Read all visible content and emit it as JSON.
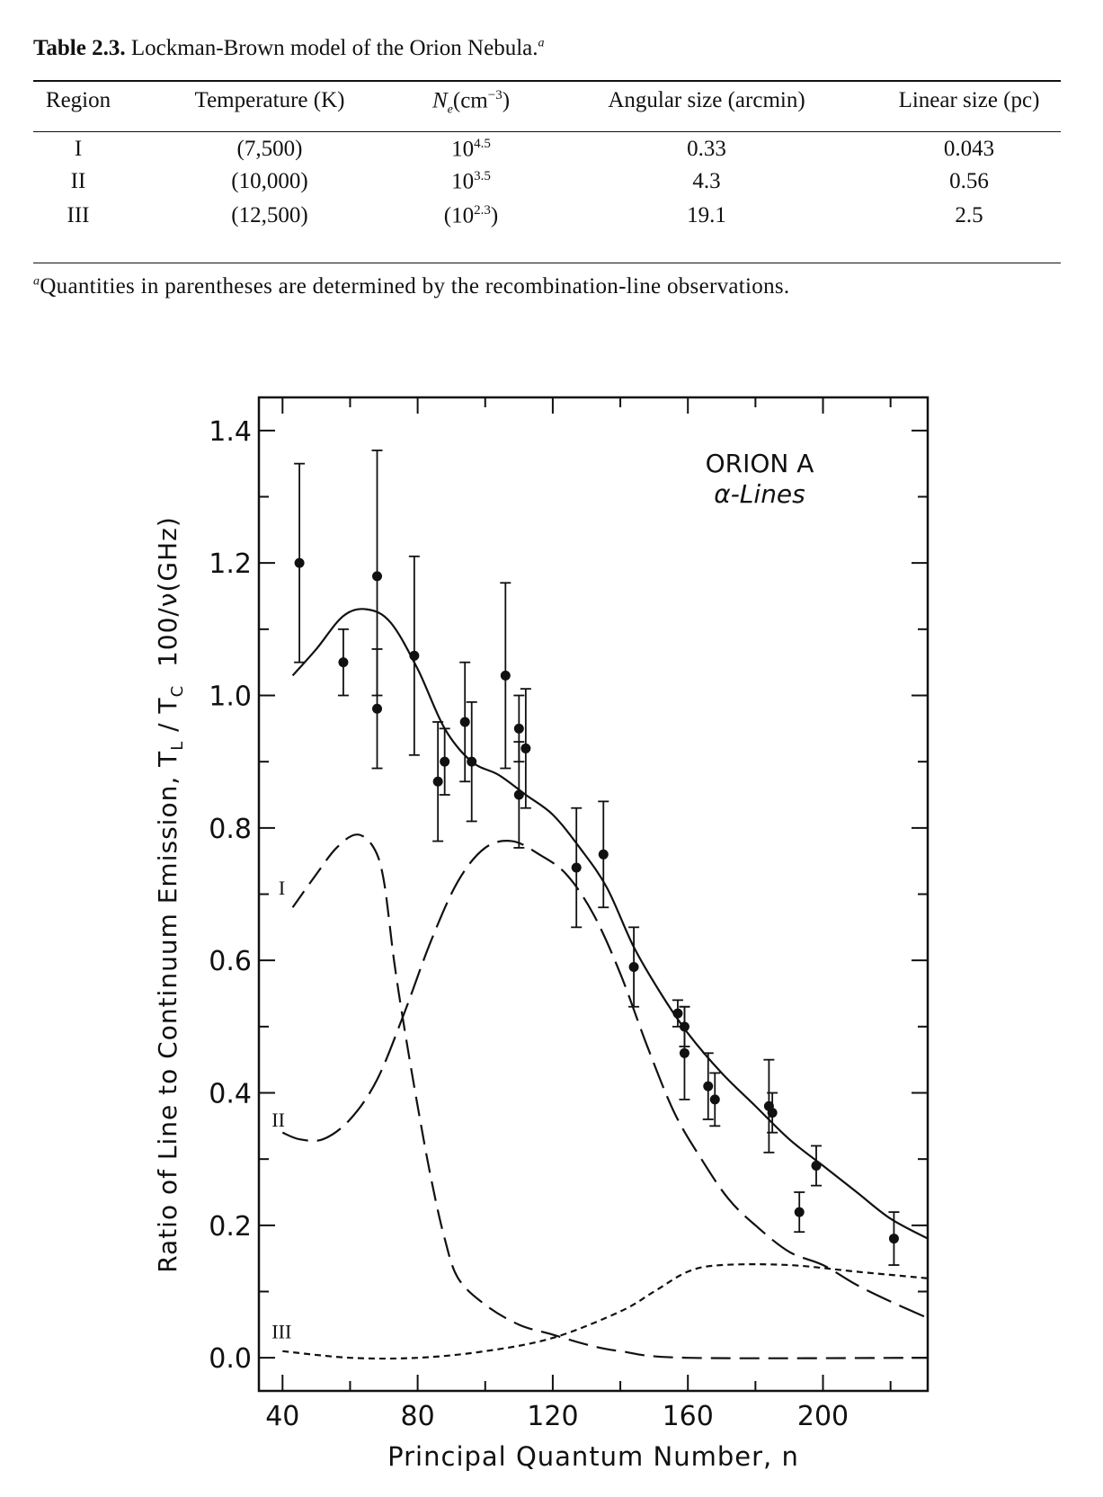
{
  "table": {
    "label": "Table 2.3.",
    "title": "Lockman-Brown model of the Orion Nebula.",
    "title_footnote_mark": "a",
    "headers": [
      "Region",
      "Temperature (K)",
      "N",
      "e",
      "(cm",
      "−3",
      ")",
      "Angular size (arcmin)",
      "Linear size (pc)"
    ],
    "rows": [
      {
        "region": "I",
        "temperature": "(7,500)",
        "ne_pre": "",
        "ne_base": "10",
        "ne_exp": "4.5",
        "ne_post": "",
        "angular": "0.33",
        "linear": "0.043"
      },
      {
        "region": "II",
        "temperature": "(10,000)",
        "ne_pre": "",
        "ne_base": "10",
        "ne_exp": "3.5",
        "ne_post": "",
        "angular": "4.3",
        "linear": "0.56"
      },
      {
        "region": "III",
        "temperature": "(12,500)",
        "ne_pre": "(",
        "ne_base": "10",
        "ne_exp": "2.3",
        "ne_post": ")",
        "angular": "19.1",
        "linear": "2.5"
      }
    ],
    "footnote_mark": "a",
    "footnote": "Quantities in parentheses are determined by the recombination-line observations."
  },
  "chart_data": {
    "type": "scatter",
    "xlabel": "Principal Quantum Number, n",
    "ylabel": "Ratio of Line to Continuum Emission, T_L / T_C  100/ν(GHz)",
    "ylabel_parts": {
      "main": "Ratio of Line to Continuum Emission, T",
      "sub1": "L",
      "mid": " / T",
      "sub2": "C",
      "end": "  100/ν(GHz)"
    },
    "annotation": [
      "ORION A",
      "α-Lines"
    ],
    "xlim": [
      33,
      231
    ],
    "ylim": [
      -0.05,
      1.45
    ],
    "xticks": [
      40,
      80,
      120,
      160,
      200
    ],
    "xtick_labels": [
      "40",
      "80",
      "120",
      "160",
      "200"
    ],
    "yticks": [
      0.0,
      0.2,
      0.4,
      0.6,
      0.8,
      1.0,
      1.2,
      1.4
    ],
    "ytick_labels": [
      "0.0",
      "0.2",
      "0.4",
      "0.6",
      "0.8",
      "1.0",
      "1.2",
      "1.4"
    ],
    "grid": false,
    "points": [
      {
        "n": 45,
        "y": 1.2,
        "lo": 1.05,
        "hi": 1.35
      },
      {
        "n": 58,
        "y": 1.05,
        "lo": 1.0,
        "hi": 1.1
      },
      {
        "n": 68,
        "y": 1.18,
        "lo": 1.0,
        "hi": 1.37
      },
      {
        "n": 68,
        "y": 0.98,
        "lo": 0.89,
        "hi": 1.07
      },
      {
        "n": 79,
        "y": 1.06,
        "lo": 0.91,
        "hi": 1.21
      },
      {
        "n": 86,
        "y": 0.87,
        "lo": 0.78,
        "hi": 0.96
      },
      {
        "n": 88,
        "y": 0.9,
        "lo": 0.85,
        "hi": 0.95
      },
      {
        "n": 94,
        "y": 0.96,
        "lo": 0.87,
        "hi": 1.05
      },
      {
        "n": 96,
        "y": 0.9,
        "lo": 0.81,
        "hi": 0.99
      },
      {
        "n": 106,
        "y": 1.03,
        "lo": 0.89,
        "hi": 1.17
      },
      {
        "n": 110,
        "y": 0.95,
        "lo": 0.9,
        "hi": 1.0
      },
      {
        "n": 110,
        "y": 0.85,
        "lo": 0.77,
        "hi": 0.93
      },
      {
        "n": 112,
        "y": 0.92,
        "lo": 0.83,
        "hi": 1.01
      },
      {
        "n": 127,
        "y": 0.74,
        "lo": 0.65,
        "hi": 0.83
      },
      {
        "n": 135,
        "y": 0.76,
        "lo": 0.68,
        "hi": 0.84
      },
      {
        "n": 144,
        "y": 0.59,
        "lo": 0.53,
        "hi": 0.65
      },
      {
        "n": 157,
        "y": 0.52,
        "lo": 0.5,
        "hi": 0.54
      },
      {
        "n": 159,
        "y": 0.5,
        "lo": 0.47,
        "hi": 0.53
      },
      {
        "n": 159,
        "y": 0.46,
        "lo": 0.39,
        "hi": 0.53
      },
      {
        "n": 166,
        "y": 0.41,
        "lo": 0.36,
        "hi": 0.46
      },
      {
        "n": 168,
        "y": 0.39,
        "lo": 0.35,
        "hi": 0.43
      },
      {
        "n": 184,
        "y": 0.38,
        "lo": 0.31,
        "hi": 0.45
      },
      {
        "n": 185,
        "y": 0.37,
        "lo": 0.34,
        "hi": 0.4
      },
      {
        "n": 193,
        "y": 0.22,
        "lo": 0.19,
        "hi": 0.25
      },
      {
        "n": 198,
        "y": 0.29,
        "lo": 0.26,
        "hi": 0.32
      },
      {
        "n": 221,
        "y": 0.18,
        "lo": 0.14,
        "hi": 0.22
      }
    ],
    "series": [
      {
        "label": "",
        "style": "solid",
        "x": [
          43,
          50,
          58,
          65,
          72,
          80,
          88,
          96,
          104,
          112,
          120,
          128,
          136,
          144,
          152,
          160,
          170,
          180,
          190,
          200,
          210,
          220,
          231
        ],
        "y": [
          1.03,
          1.07,
          1.12,
          1.13,
          1.11,
          1.04,
          0.95,
          0.9,
          0.88,
          0.85,
          0.82,
          0.77,
          0.71,
          0.62,
          0.55,
          0.49,
          0.43,
          0.38,
          0.33,
          0.29,
          0.25,
          0.21,
          0.18
        ]
      },
      {
        "label": "I",
        "style": "dashed",
        "x": [
          43,
          50,
          56,
          62,
          67,
          70,
          73,
          76,
          80,
          84,
          88,
          92,
          100,
          110,
          120,
          130,
          140,
          160,
          231
        ],
        "y": [
          0.68,
          0.73,
          0.77,
          0.79,
          0.77,
          0.72,
          0.6,
          0.5,
          0.38,
          0.27,
          0.18,
          0.12,
          0.08,
          0.05,
          0.035,
          0.02,
          0.01,
          0.0,
          0.0
        ]
      },
      {
        "label": "II",
        "style": "long-dashed",
        "x": [
          40,
          45,
          52,
          60,
          68,
          76,
          84,
          92,
          100,
          108,
          116,
          124,
          132,
          140,
          148,
          156,
          164,
          172,
          180,
          190,
          200,
          210,
          220,
          231
        ],
        "y": [
          0.34,
          0.33,
          0.33,
          0.36,
          0.42,
          0.52,
          0.63,
          0.72,
          0.77,
          0.78,
          0.76,
          0.73,
          0.67,
          0.58,
          0.47,
          0.37,
          0.3,
          0.24,
          0.2,
          0.16,
          0.14,
          0.11,
          0.085,
          0.06
        ]
      },
      {
        "label": "III",
        "style": "short-dashed",
        "x": [
          40,
          60,
          80,
          100,
          120,
          140,
          150,
          160,
          170,
          190,
          210,
          231
        ],
        "y": [
          0.01,
          0.0,
          0.0,
          0.01,
          0.03,
          0.07,
          0.1,
          0.13,
          0.14,
          0.14,
          0.13,
          0.12
        ]
      }
    ],
    "series_label_positions": [
      {
        "label": "I",
        "n": 42,
        "y": 0.71
      },
      {
        "label": "II",
        "n": 40,
        "y": 0.36
      },
      {
        "label": "III",
        "n": 40,
        "y": 0.04
      }
    ]
  }
}
